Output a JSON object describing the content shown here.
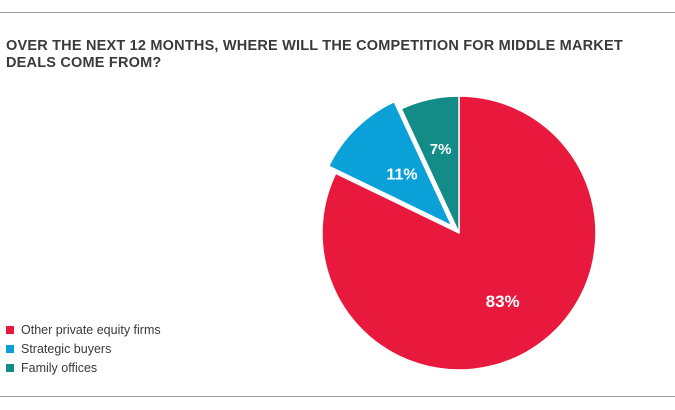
{
  "chart_data": {
    "type": "pie",
    "title": "OVER THE NEXT 12 MONTHS, WHERE WILL THE COMPETITION FOR MIDDLE MARKET DEALS COME FROM?",
    "slices": [
      {
        "name": "Other private equity firms",
        "value": 83,
        "label": "83%",
        "color": "#e8193c",
        "exploded": false
      },
      {
        "name": "Strategic buyers",
        "value": 11,
        "label": "11%",
        "color": "#0aa0d8",
        "exploded": true
      },
      {
        "name": "Family offices",
        "value": 7,
        "label": "7%",
        "color": "#138c87",
        "exploded": false
      }
    ],
    "start_angle_deg": 0,
    "direction": "clockwise",
    "legend": {
      "placement": "bottom-left",
      "items": [
        "Other private equity firms",
        "Strategic buyers",
        "Family offices"
      ]
    }
  }
}
